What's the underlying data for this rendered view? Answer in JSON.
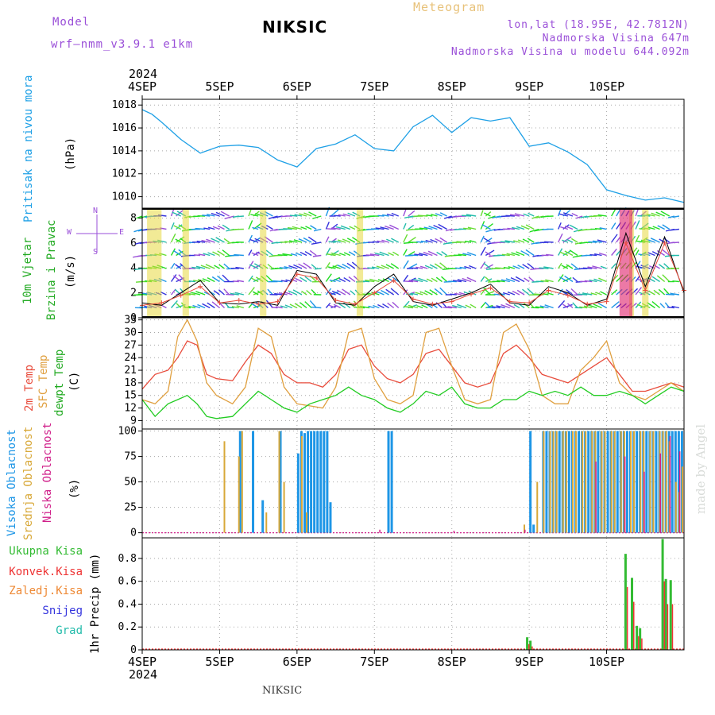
{
  "header": {
    "model_label": "Model",
    "model_name": "wrf—nmm_v3.9.1  e1km",
    "title": "NIKSIC",
    "meteogram": "Meteogram",
    "lonlat": "lon,lat (18.95E, 42.7812N)",
    "elevation": "Nadmorska Visina 647m",
    "model_elevation": "Nadmorska Visina u modelu 644.092m",
    "bottom_title": "NIKSIC",
    "watermark": "made by Angel"
  },
  "x_axis": {
    "top_year": "2024",
    "bottom_year": "2024",
    "labels": [
      "4SEP",
      "5SEP",
      "6SEP",
      "7SEP",
      "8SEP",
      "9SEP",
      "10SEP"
    ]
  },
  "panel_labels": {
    "pressure": [
      "Pritisak na nivou mora",
      "(hPa)"
    ],
    "wind": [
      "10m Vjetar",
      "Brzina i Pravac",
      "(m/s)"
    ],
    "compass": [
      "W",
      "E",
      "N",
      "S"
    ],
    "temperature": [
      "2m Temp",
      "SFC Temp",
      "dewpt Temp",
      "(C)"
    ],
    "clouds": [
      "Visoka Oblacnost",
      "Srednja Oblacnost",
      "Niska Oblacnost",
      "(%)"
    ],
    "precip_legend": [
      "Ukupna Kisa",
      "Konvek.Kisa",
      "Zaledj.Kisa",
      "Snijeg",
      "Grad"
    ],
    "precip_axis": "1hr Precip (mm)"
  },
  "colors": {
    "pressure": "#1ea0e6",
    "temp2m": "#e84c3c",
    "sfc_temp": "#e0a040",
    "dewpoint": "#22cc22",
    "high_cloud": "#1e96e6",
    "mid_cloud": "#d8a838",
    "low_cloud": "#d0208a",
    "total_rain": "#33bb33",
    "conv_rain": "#ee3333",
    "freezing_rain": "#ee8833",
    "snow": "#3333dd",
    "hail": "#22bbaa",
    "purple": "#9a4fd8",
    "orange": "#e8c27a"
  },
  "chart_data": [
    {
      "type": "line",
      "panel": "pressure",
      "series": [
        {
          "x": [
            0,
            3,
            6,
            12,
            18,
            24,
            30,
            36,
            42,
            48,
            54,
            60,
            66,
            72,
            78,
            84,
            90,
            96,
            102,
            108,
            114,
            120,
            126,
            132,
            138,
            144,
            150,
            156,
            162,
            168
          ],
          "y": [
            1017.6,
            1017.2,
            1016.5,
            1015.0,
            1013.8,
            1014.4,
            1014.5,
            1014.3,
            1013.2,
            1012.6,
            1014.2,
            1014.6,
            1015.4,
            1014.2,
            1014.0,
            1016.1,
            1017.1,
            1015.6,
            1016.9,
            1016.6,
            1016.9,
            1014.4,
            1014.7,
            1013.9,
            1012.8,
            1010.6,
            1010.1,
            1009.7,
            1009.9,
            1009.5
          ]
        }
      ],
      "ylim": [
        1009,
        1018.5
      ],
      "yticks": [
        1010,
        1012,
        1014,
        1016,
        1018
      ]
    },
    {
      "type": "line",
      "panel": "wind",
      "series": [
        {
          "x": [
            0,
            6,
            12,
            18,
            24,
            30,
            36,
            42,
            48,
            54,
            60,
            66,
            72,
            78,
            84,
            90,
            96,
            102,
            108,
            114,
            120,
            126,
            132,
            138,
            144,
            150,
            156,
            162,
            168
          ],
          "y": [
            1.2,
            1.0,
            2.0,
            3.0,
            1.2,
            1.1,
            1.3,
            1.0,
            3.8,
            3.5,
            1.2,
            1.0,
            2.5,
            3.5,
            1.3,
            1.0,
            1.5,
            2.0,
            2.7,
            1.2,
            1.0,
            2.5,
            2.0,
            1.0,
            1.5,
            6.8,
            2.5,
            6.5,
            2.0
          ]
        },
        {
          "x": [
            0,
            6,
            12,
            18,
            24,
            30,
            36,
            42,
            48,
            54,
            60,
            66,
            72,
            78,
            84,
            90,
            96,
            102,
            108,
            114,
            120,
            126,
            132,
            138,
            144,
            150,
            156,
            162,
            168
          ],
          "y": [
            1.0,
            1.2,
            1.8,
            2.5,
            1.2,
            1.4,
            1.1,
            1.3,
            3.5,
            3.2,
            1.4,
            1.1,
            2.0,
            3.0,
            1.5,
            1.1,
            1.3,
            1.9,
            2.4,
            1.3,
            1.2,
            2.2,
            1.8,
            1.1,
            1.3,
            6.0,
            2.2,
            6.0,
            2.2
          ]
        }
      ],
      "ylim": [
        0,
        8.8
      ],
      "yticks": [
        0,
        2,
        4,
        6,
        8
      ]
    },
    {
      "type": "line",
      "panel": "temperature",
      "series": [
        {
          "name": "2m Temp",
          "x": [
            0,
            4,
            8,
            11,
            14,
            17,
            20,
            23,
            28,
            32,
            36,
            40,
            44,
            48,
            52,
            56,
            60,
            64,
            68,
            72,
            76,
            80,
            84,
            88,
            92,
            96,
            100,
            104,
            108,
            112,
            116,
            120,
            124,
            128,
            132,
            136,
            140,
            144,
            148,
            152,
            156,
            160,
            164,
            168
          ],
          "y": [
            16.5,
            20,
            21,
            24,
            28,
            27,
            20,
            19,
            18.5,
            23,
            27,
            25,
            20,
            18,
            18,
            17,
            20,
            26,
            27,
            22,
            19,
            18,
            20,
            25,
            26,
            22,
            18,
            17,
            18,
            25,
            27,
            24,
            20,
            19,
            18,
            20,
            22,
            24,
            20,
            16,
            16,
            17,
            18,
            17
          ]
        },
        {
          "name": "SFC Temp",
          "x": [
            0,
            4,
            8,
            11,
            14,
            17,
            20,
            23,
            28,
            32,
            36,
            40,
            44,
            48,
            52,
            56,
            60,
            64,
            68,
            72,
            76,
            80,
            84,
            88,
            92,
            96,
            100,
            104,
            108,
            112,
            116,
            120,
            124,
            128,
            132,
            136,
            140,
            144,
            148,
            152,
            156,
            160,
            164,
            168
          ],
          "y": [
            14,
            13,
            16,
            29,
            33,
            28,
            18,
            15,
            13,
            17,
            31,
            29,
            17,
            13,
            12.5,
            12,
            17,
            30,
            31,
            19,
            14,
            13,
            15,
            30,
            31,
            22,
            14,
            13,
            14,
            30,
            32,
            26,
            15,
            13,
            13,
            21,
            24,
            28,
            18,
            15,
            14,
            16,
            18,
            16
          ]
        },
        {
          "name": "dewpt Temp",
          "x": [
            0,
            4,
            8,
            11,
            14,
            17,
            20,
            23,
            28,
            32,
            36,
            40,
            44,
            48,
            52,
            56,
            60,
            64,
            68,
            72,
            76,
            80,
            84,
            88,
            92,
            96,
            100,
            104,
            108,
            112,
            116,
            120,
            124,
            128,
            132,
            136,
            140,
            144,
            148,
            152,
            156,
            160,
            164,
            168
          ],
          "y": [
            14,
            10,
            13,
            14,
            15,
            13,
            10,
            9.5,
            10,
            13,
            16,
            14,
            12,
            11,
            13,
            14,
            15,
            17,
            15,
            14,
            12,
            11,
            13,
            16,
            15,
            17,
            13,
            12,
            12,
            14,
            14,
            16,
            15,
            16,
            15,
            17,
            15,
            15,
            16,
            15,
            13,
            15,
            17,
            16
          ]
        }
      ],
      "ylim": [
        7,
        33.5
      ],
      "yticks": [
        9,
        12,
        15,
        18,
        21,
        24,
        27,
        30,
        33
      ]
    },
    {
      "type": "bar",
      "panel": "clouds",
      "series": [
        {
          "name": "Visoka Oblacnost",
          "x": [
            34,
            35,
            38,
            42,
            43,
            46,
            49,
            50,
            51,
            52,
            53,
            54,
            55,
            56,
            57,
            58,
            59,
            60,
            61,
            62,
            63,
            64,
            65,
            66,
            67,
            68
          ],
          "values": [
            0,
            0,
            0,
            0,
            0,
            0,
            0,
            0,
            0,
            0,
            0,
            0,
            0,
            0,
            0,
            0,
            0,
            0,
            0,
            0,
            0,
            0,
            0,
            0,
            0,
            0
          ]
        },
        {
          "name": "high_bars",
          "x": [
            30,
            34,
            37,
            42.5,
            48,
            49,
            50,
            51,
            52,
            53,
            54,
            55,
            56,
            57,
            58,
            76,
            77,
            120,
            121,
            124,
            125,
            126,
            127,
            128,
            129,
            130,
            131,
            132,
            133,
            134,
            135,
            136,
            137,
            138,
            139,
            140,
            141,
            142,
            143,
            144,
            145,
            146,
            147,
            148,
            149,
            150,
            151,
            152,
            153,
            154,
            155,
            156,
            157,
            158,
            159,
            160,
            161,
            162,
            163,
            164,
            165,
            166,
            167
          ],
          "values": [
            100,
            100,
            32,
            100,
            78,
            100,
            98,
            100,
            100,
            100,
            100,
            100,
            100,
            100,
            30,
            100,
            100,
            100,
            8,
            100,
            100,
            100,
            100,
            100,
            100,
            100,
            100,
            100,
            100,
            100,
            100,
            100,
            100,
            100,
            100,
            100,
            100,
            100,
            100,
            100,
            100,
            100,
            100,
            100,
            100,
            100,
            100,
            100,
            100,
            100,
            100,
            100,
            100,
            100,
            100,
            100,
            100,
            100,
            100,
            100,
            100,
            100,
            100
          ]
        },
        {
          "name": "Srednja Oblacnost",
          "x": [
            25,
            29.5,
            30.5,
            38,
            42,
            43.5,
            49,
            50.5,
            118,
            122,
            124,
            126,
            127,
            128,
            130,
            131,
            133,
            134,
            136,
            137,
            139,
            140,
            142,
            143,
            145,
            146,
            148,
            149,
            151,
            152,
            154,
            155,
            157,
            158,
            160,
            161,
            162,
            163,
            165,
            166,
            167
          ],
          "values": [
            90,
            75,
            100,
            20,
            100,
            50,
            95,
            20,
            8,
            50,
            100,
            100,
            100,
            100,
            100,
            100,
            100,
            100,
            100,
            100,
            100,
            100,
            100,
            100,
            100,
            100,
            100,
            100,
            100,
            100,
            100,
            100,
            100,
            100,
            100,
            100,
            100,
            90,
            50,
            40,
            65
          ]
        },
        {
          "name": "Niska Oblacnost",
          "x": [
            73,
            96,
            118,
            140,
            149,
            155,
            160,
            163,
            166
          ],
          "values": [
            3,
            2,
            3,
            70,
            75,
            60,
            78,
            95,
            80
          ]
        }
      ],
      "ylim": [
        -5,
        102
      ],
      "yticks": [
        0,
        25,
        50,
        75,
        100
      ]
    },
    {
      "type": "bar",
      "panel": "precip",
      "series": [
        {
          "name": "Ukupna Kisa",
          "x": [
            119,
            120,
            149.5,
            151.5,
            153,
            154,
            161,
            162,
            163.5
          ],
          "values": [
            0.11,
            0.08,
            0.84,
            0.63,
            0.21,
            0.19,
            0.97,
            0.62,
            0.61
          ]
        },
        {
          "name": "Konvek.Kisa",
          "x": [
            119,
            120,
            149.5,
            151.5,
            153,
            154,
            161,
            162,
            163.5
          ],
          "values": [
            0.05,
            0.03,
            0.55,
            0.42,
            0.12,
            0.1,
            0.6,
            0.4,
            0.4
          ]
        }
      ],
      "ylim": [
        0,
        0.98
      ],
      "yticks": [
        0,
        0.2,
        0.4,
        0.6,
        0.8
      ]
    }
  ]
}
